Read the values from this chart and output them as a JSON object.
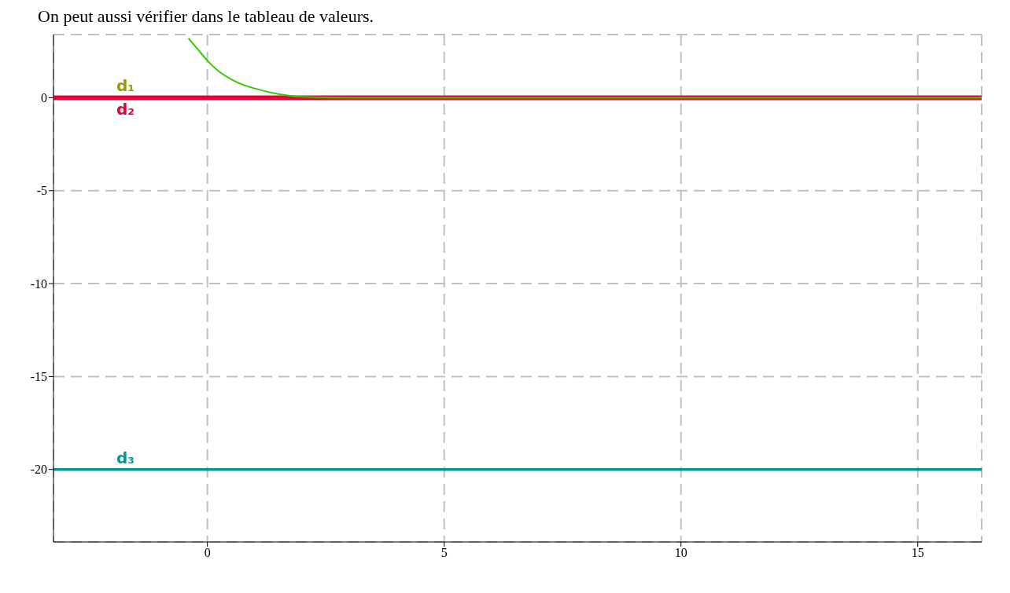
{
  "chart_data": {
    "type": "line",
    "annotations": [
      "On peut aussi vérifier dans le tableau de valeurs."
    ],
    "series": [
      {
        "name": "d₁",
        "color": "#999900",
        "x": [
          -3.25,
          16.35
        ],
        "values": [
          0,
          0
        ]
      },
      {
        "name": "d₂",
        "color": "#e8003a",
        "x": [
          -3.25,
          16.35
        ],
        "values": [
          0,
          0
        ]
      },
      {
        "name": "d₃",
        "color": "#009999",
        "x": [
          -3.25,
          16.35
        ],
        "values": [
          -20,
          -20
        ]
      },
      {
        "color": "#33cc00",
        "x": [
          -0.4,
          -0.2,
          0,
          0.25,
          0.5,
          0.75,
          1,
          1.5,
          2,
          3,
          5,
          10,
          16.35
        ],
        "values": [
          3.2,
          2.6,
          2.0,
          1.4,
          1.0,
          0.7,
          0.5,
          0.2,
          0.05,
          0,
          0,
          0,
          0
        ]
      }
    ],
    "xlim": [
      -3.25,
      16.35
    ],
    "ylim": [
      -23.9,
      3.4
    ],
    "xticks": [
      0,
      5,
      10,
      15
    ],
    "yticks": [
      -20,
      -15,
      -10,
      -5,
      0
    ],
    "grid": true,
    "marker": "none",
    "line_style": "solid"
  }
}
